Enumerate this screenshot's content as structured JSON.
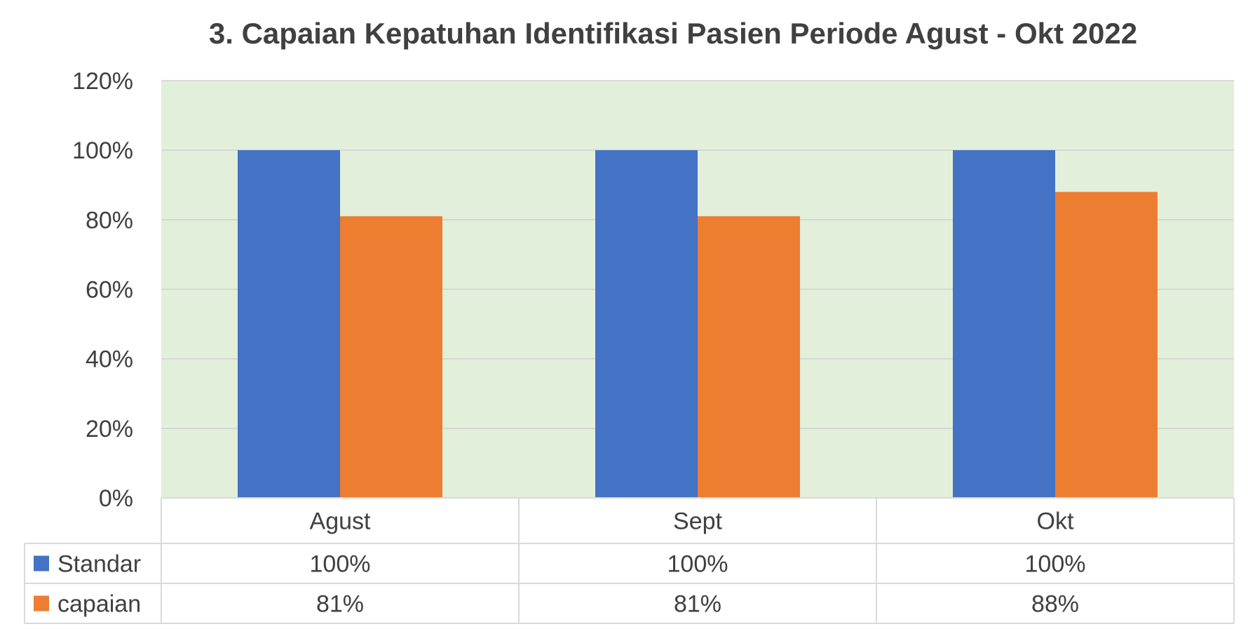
{
  "chart_data": {
    "type": "bar",
    "title": "3. Capaian Kepatuhan Identifikasi Pasien Periode Agust - Okt 2022",
    "categories": [
      "Agust",
      "Sept",
      "Okt"
    ],
    "series": [
      {
        "name": "Standar",
        "values": [
          1.0,
          1.0,
          1.0
        ],
        "labels": [
          "100%",
          "100%",
          "100%"
        ],
        "color": "#4472C4"
      },
      {
        "name": "capaian",
        "values": [
          0.81,
          0.81,
          0.88
        ],
        "labels": [
          "81%",
          "81%",
          "88%"
        ],
        "color": "#ED7D31"
      }
    ],
    "ylim": [
      0,
      1.2
    ],
    "yticks": [
      "0%",
      "20%",
      "40%",
      "60%",
      "80%",
      "100%",
      "120%"
    ],
    "ytick_values": [
      0,
      0.2,
      0.4,
      0.6,
      0.8,
      1.0,
      1.2
    ],
    "grid": true,
    "plot_background": "#E2EFDA",
    "gridline_color": "#D0D0D0",
    "data_table": true,
    "legend": "data-table"
  }
}
